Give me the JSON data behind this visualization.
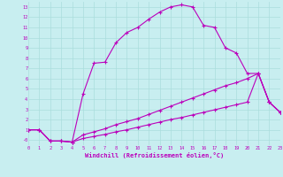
{
  "xlabel": "Windchill (Refroidissement éolien,°C)",
  "background_color": "#c8eef0",
  "line_color": "#bb00bb",
  "xlim": [
    0,
    23
  ],
  "ylim": [
    -0.5,
    13.5
  ],
  "xticks": [
    0,
    1,
    2,
    3,
    4,
    5,
    6,
    7,
    8,
    9,
    10,
    11,
    12,
    13,
    14,
    15,
    16,
    17,
    18,
    19,
    20,
    21,
    22,
    23
  ],
  "yticks": [
    0,
    1,
    2,
    3,
    4,
    5,
    6,
    7,
    8,
    9,
    10,
    11,
    12,
    13
  ],
  "ytick_labels": [
    "-0",
    "1",
    "2",
    "3",
    "4",
    "5",
    "6",
    "7",
    "8",
    "9",
    "10",
    "11",
    "12",
    "13"
  ],
  "grid_color": "#aadddd",
  "curve1_x": [
    0,
    1,
    2,
    3,
    4,
    5,
    6,
    7,
    8,
    9,
    10,
    11,
    12,
    13,
    14,
    15,
    16,
    17,
    18,
    19,
    20,
    21,
    22,
    23
  ],
  "curve1_y": [
    1.0,
    1.0,
    -0.1,
    -0.1,
    -0.2,
    4.5,
    7.5,
    7.6,
    9.5,
    10.5,
    11.0,
    11.8,
    12.5,
    13.0,
    13.2,
    13.0,
    11.2,
    11.0,
    9.0,
    8.5,
    6.5,
    6.5,
    3.7,
    2.7
  ],
  "curve2_x": [
    0,
    1,
    2,
    3,
    4,
    5,
    6,
    7,
    8,
    9,
    10,
    11,
    12,
    13,
    14,
    15,
    16,
    17,
    18,
    19,
    20,
    21,
    22,
    23
  ],
  "curve2_y": [
    1.0,
    1.0,
    -0.1,
    -0.1,
    -0.2,
    0.5,
    0.8,
    1.1,
    1.5,
    1.8,
    2.1,
    2.5,
    2.9,
    3.3,
    3.7,
    4.1,
    4.5,
    4.9,
    5.3,
    5.6,
    6.0,
    6.5,
    3.7,
    2.7
  ],
  "curve3_x": [
    0,
    1,
    2,
    3,
    4,
    5,
    6,
    7,
    8,
    9,
    10,
    11,
    12,
    13,
    14,
    15,
    16,
    17,
    18,
    19,
    20,
    21,
    22,
    23
  ],
  "curve3_y": [
    1.0,
    1.0,
    -0.1,
    -0.1,
    -0.2,
    0.15,
    0.35,
    0.55,
    0.8,
    1.0,
    1.25,
    1.5,
    1.75,
    2.0,
    2.2,
    2.45,
    2.7,
    2.95,
    3.2,
    3.45,
    3.7,
    6.5,
    3.7,
    2.7
  ]
}
